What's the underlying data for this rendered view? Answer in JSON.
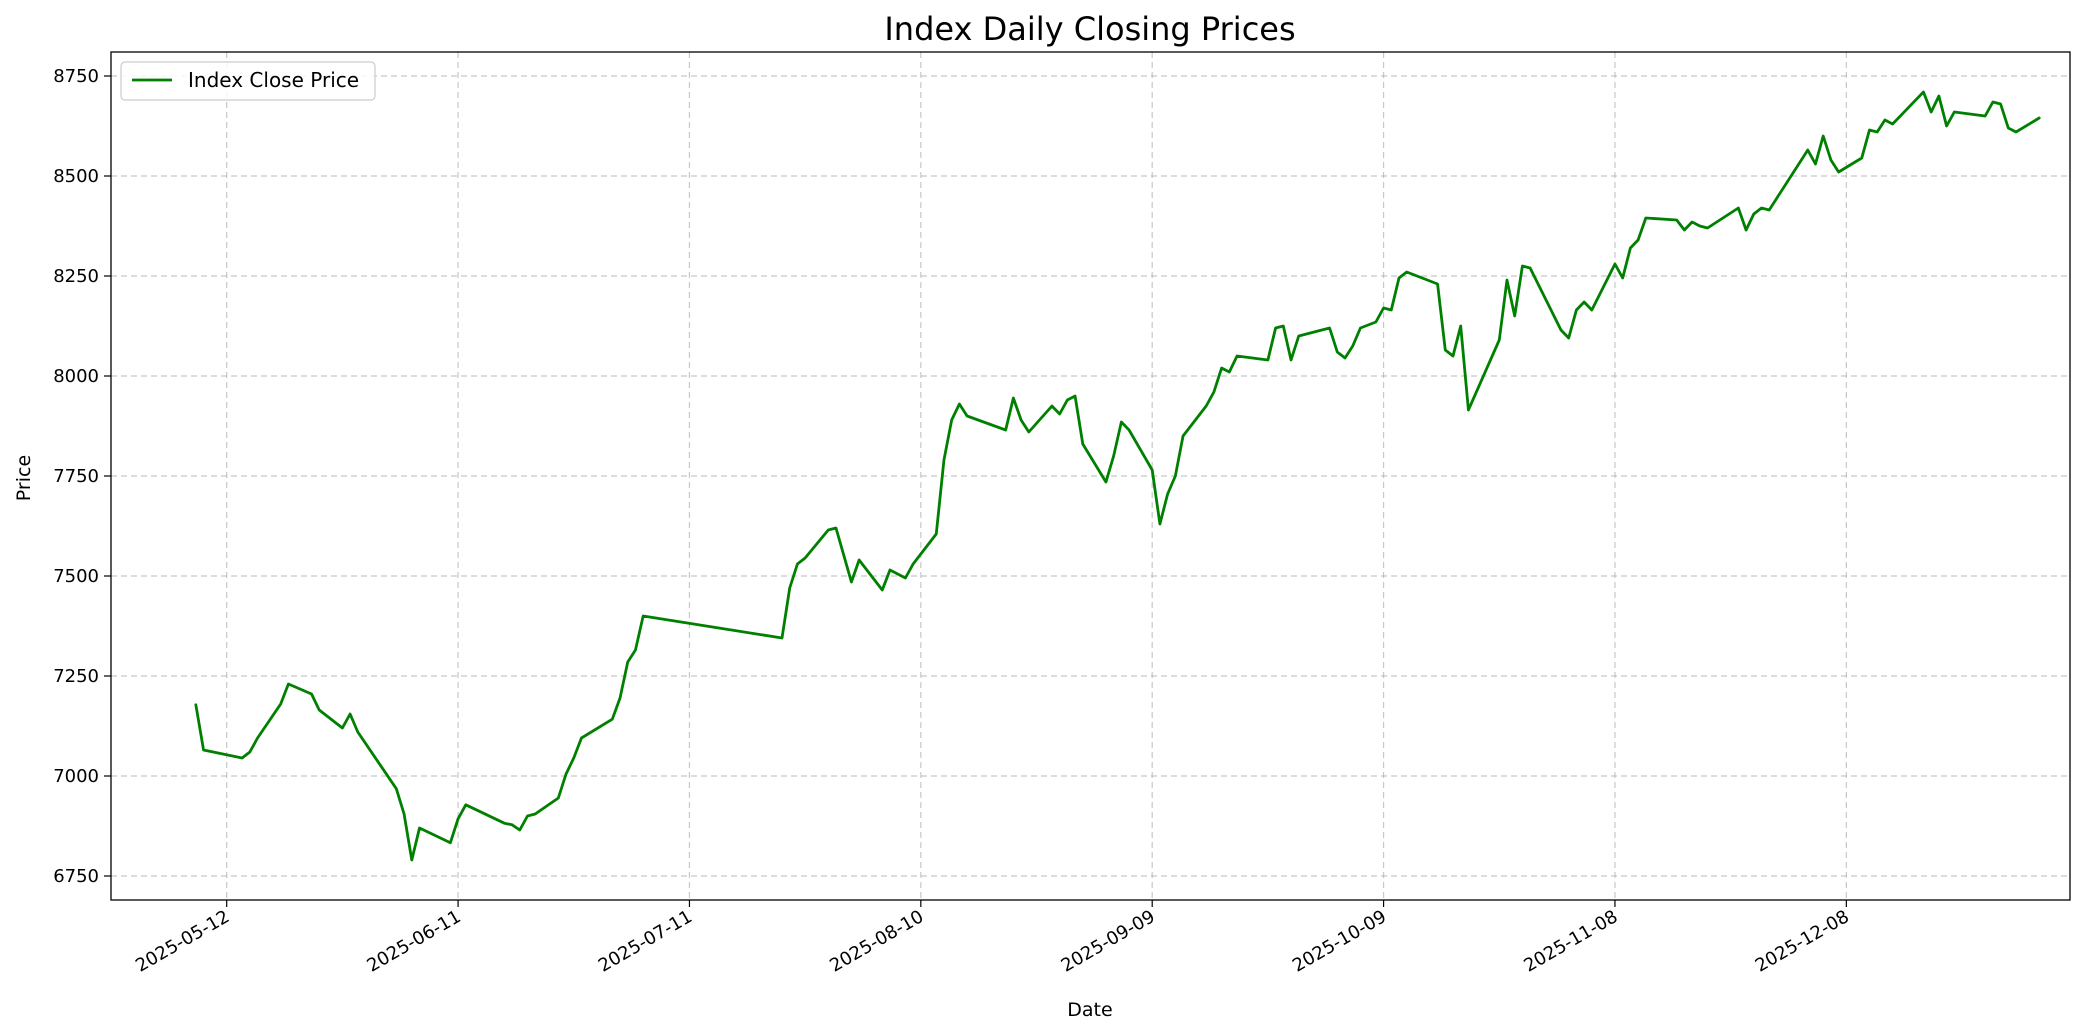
{
  "chart_data": {
    "type": "line",
    "title": "Index Daily Closing Prices",
    "xlabel": "Date",
    "ylabel": "Price",
    "xlim": [
      "2025-04-27",
      "2026-01-06"
    ],
    "ylim": [
      6690,
      8810
    ],
    "y_ticks": [
      6750,
      7000,
      7250,
      7500,
      7750,
      8000,
      8250,
      8500,
      8750
    ],
    "x_ticks": [
      "2025-05-12",
      "2025-06-11",
      "2025-07-11",
      "2025-08-10",
      "2025-09-09",
      "2025-10-09",
      "2025-11-08",
      "2025-12-08"
    ],
    "grid": true,
    "legend_position": "top-left",
    "series": [
      {
        "name": "Index Close Price",
        "color": "#008000",
        "points": [
          [
            "2025-05-08",
            7178
          ],
          [
            "2025-05-09",
            7065
          ],
          [
            "2025-05-14",
            7045
          ],
          [
            "2025-05-15",
            7060
          ],
          [
            "2025-05-16",
            7095
          ],
          [
            "2025-05-19",
            7180
          ],
          [
            "2025-05-20",
            7230
          ],
          [
            "2025-05-23",
            7205
          ],
          [
            "2025-05-24",
            7165
          ],
          [
            "2025-05-27",
            7120
          ],
          [
            "2025-05-28",
            7155
          ],
          [
            "2025-05-29",
            7110
          ],
          [
            "2025-06-03",
            6968
          ],
          [
            "2025-06-04",
            6905
          ],
          [
            "2025-06-05",
            6790
          ],
          [
            "2025-06-06",
            6870
          ],
          [
            "2025-06-10",
            6833
          ],
          [
            "2025-06-11",
            6893
          ],
          [
            "2025-06-12",
            6928
          ],
          [
            "2025-06-17",
            6882
          ],
          [
            "2025-06-18",
            6878
          ],
          [
            "2025-06-19",
            6865
          ],
          [
            "2025-06-20",
            6900
          ],
          [
            "2025-06-21",
            6905
          ],
          [
            "2025-06-24",
            6945
          ],
          [
            "2025-06-25",
            7005
          ],
          [
            "2025-06-26",
            7045
          ],
          [
            "2025-06-27",
            7095
          ],
          [
            "2025-07-01",
            7142
          ],
          [
            "2025-07-02",
            7195
          ],
          [
            "2025-07-03",
            7285
          ],
          [
            "2025-07-04",
            7315
          ],
          [
            "2025-07-05",
            7400
          ],
          [
            "2025-07-23",
            7345
          ],
          [
            "2025-07-24",
            7470
          ],
          [
            "2025-07-25",
            7530
          ],
          [
            "2025-07-26",
            7545
          ],
          [
            "2025-07-29",
            7615
          ],
          [
            "2025-07-30",
            7620
          ],
          [
            "2025-08-01",
            7485
          ],
          [
            "2025-08-02",
            7540
          ],
          [
            "2025-08-05",
            7465
          ],
          [
            "2025-08-06",
            7515
          ],
          [
            "2025-08-08",
            7495
          ],
          [
            "2025-08-09",
            7530
          ],
          [
            "2025-08-12",
            7605
          ],
          [
            "2025-08-13",
            7790
          ],
          [
            "2025-08-14",
            7890
          ],
          [
            "2025-08-15",
            7930
          ],
          [
            "2025-08-16",
            7900
          ],
          [
            "2025-08-21",
            7865
          ],
          [
            "2025-08-22",
            7945
          ],
          [
            "2025-08-23",
            7890
          ],
          [
            "2025-08-24",
            7860
          ],
          [
            "2025-08-27",
            7925
          ],
          [
            "2025-08-28",
            7905
          ],
          [
            "2025-08-29",
            7940
          ],
          [
            "2025-08-30",
            7950
          ],
          [
            "2025-08-31",
            7830
          ],
          [
            "2025-09-03",
            7735
          ],
          [
            "2025-09-04",
            7800
          ],
          [
            "2025-09-05",
            7885
          ],
          [
            "2025-09-06",
            7865
          ],
          [
            "2025-09-09",
            7765
          ],
          [
            "2025-09-10",
            7630
          ],
          [
            "2025-09-11",
            7705
          ],
          [
            "2025-09-12",
            7750
          ],
          [
            "2025-09-13",
            7850
          ],
          [
            "2025-09-16",
            7925
          ],
          [
            "2025-09-17",
            7960
          ],
          [
            "2025-09-18",
            8020
          ],
          [
            "2025-09-19",
            8010
          ],
          [
            "2025-09-20",
            8050
          ],
          [
            "2025-09-24",
            8040
          ],
          [
            "2025-09-25",
            8120
          ],
          [
            "2025-09-26",
            8125
          ],
          [
            "2025-09-27",
            8040
          ],
          [
            "2025-09-28",
            8100
          ],
          [
            "2025-10-02",
            8120
          ],
          [
            "2025-10-03",
            8060
          ],
          [
            "2025-10-04",
            8045
          ],
          [
            "2025-10-05",
            8075
          ],
          [
            "2025-10-06",
            8120
          ],
          [
            "2025-10-08",
            8135
          ],
          [
            "2025-10-09",
            8170
          ],
          [
            "2025-10-10",
            8165
          ],
          [
            "2025-10-11",
            8245
          ],
          [
            "2025-10-12",
            8260
          ],
          [
            "2025-10-16",
            8230
          ],
          [
            "2025-10-17",
            8065
          ],
          [
            "2025-10-18",
            8050
          ],
          [
            "2025-10-19",
            8125
          ],
          [
            "2025-10-20",
            7915
          ],
          [
            "2025-10-24",
            8090
          ],
          [
            "2025-10-25",
            8240
          ],
          [
            "2025-10-26",
            8150
          ],
          [
            "2025-10-27",
            8275
          ],
          [
            "2025-10-28",
            8270
          ],
          [
            "2025-11-01",
            8115
          ],
          [
            "2025-11-02",
            8095
          ],
          [
            "2025-11-03",
            8165
          ],
          [
            "2025-11-04",
            8185
          ],
          [
            "2025-11-05",
            8165
          ],
          [
            "2025-11-08",
            8280
          ],
          [
            "2025-11-09",
            8245
          ],
          [
            "2025-11-10",
            8320
          ],
          [
            "2025-11-11",
            8340
          ],
          [
            "2025-11-12",
            8395
          ],
          [
            "2025-11-16",
            8390
          ],
          [
            "2025-11-17",
            8365
          ],
          [
            "2025-11-18",
            8385
          ],
          [
            "2025-11-19",
            8375
          ],
          [
            "2025-11-20",
            8370
          ],
          [
            "2025-11-24",
            8420
          ],
          [
            "2025-11-25",
            8365
          ],
          [
            "2025-11-26",
            8405
          ],
          [
            "2025-11-27",
            8420
          ],
          [
            "2025-11-28",
            8415
          ],
          [
            "2025-12-03",
            8565
          ],
          [
            "2025-12-04",
            8530
          ],
          [
            "2025-12-05",
            8600
          ],
          [
            "2025-12-06",
            8540
          ],
          [
            "2025-12-07",
            8510
          ],
          [
            "2025-12-10",
            8545
          ],
          [
            "2025-12-11",
            8615
          ],
          [
            "2025-12-12",
            8610
          ],
          [
            "2025-12-13",
            8640
          ],
          [
            "2025-12-14",
            8630
          ],
          [
            "2025-12-18",
            8710
          ],
          [
            "2025-12-19",
            8660
          ],
          [
            "2025-12-20",
            8700
          ],
          [
            "2025-12-21",
            8625
          ],
          [
            "2025-12-22",
            8660
          ],
          [
            "2025-12-26",
            8650
          ],
          [
            "2025-12-27",
            8685
          ],
          [
            "2025-12-28",
            8680
          ],
          [
            "2025-12-29",
            8620
          ],
          [
            "2025-12-30",
            8610
          ],
          [
            "2026-01-02",
            8645
          ]
        ]
      }
    ]
  }
}
